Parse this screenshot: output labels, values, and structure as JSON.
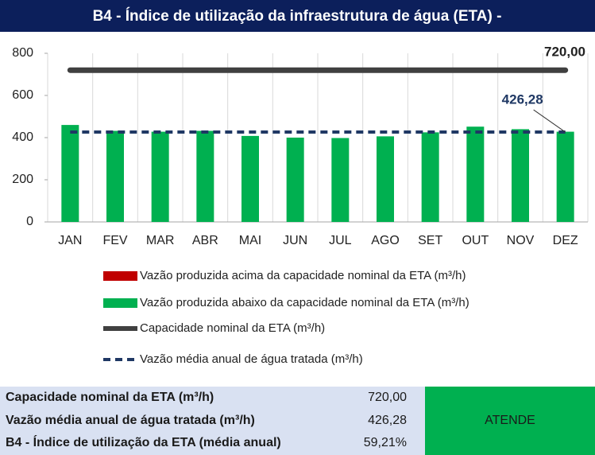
{
  "chart_data": {
    "type": "bar",
    "title": "B4 - Índice de utilização da infraestrutura de água (ETA) -",
    "categories": [
      "JAN",
      "FEV",
      "MAR",
      "ABR",
      "MAI",
      "JUN",
      "JUL",
      "AGO",
      "SET",
      "OUT",
      "NOV",
      "DEZ"
    ],
    "series": [
      {
        "name": "Vazão produzida acima da capacidade nominal da ETA (m³/h)",
        "color": "#c00000",
        "kind": "bar",
        "values": [
          0,
          0,
          0,
          0,
          0,
          0,
          0,
          0,
          0,
          0,
          0,
          0
        ]
      },
      {
        "name": "Vazão produzida abaixo da capacidade nominal da ETA (m³/h)",
        "color": "#00b050",
        "kind": "bar",
        "values": [
          460,
          432,
          428,
          432,
          408,
          400,
          398,
          406,
          425,
          452,
          440,
          428
        ]
      },
      {
        "name": "Capacidade nominal da ETA (m³/h)",
        "color": "#404040",
        "kind": "line",
        "values": [
          720,
          720,
          720,
          720,
          720,
          720,
          720,
          720,
          720,
          720,
          720,
          720
        ],
        "value_labels": [
          null,
          null,
          null,
          null,
          null,
          null,
          null,
          null,
          null,
          null,
          null,
          "720,00"
        ]
      },
      {
        "name": "Vazão média anual de água tratada (m³/h)",
        "color": "#1f3864",
        "kind": "dashed-line",
        "values": [
          426.28,
          426.28,
          426.28,
          426.28,
          426.28,
          426.28,
          426.28,
          426.28,
          426.28,
          426.28,
          426.28,
          426.28
        ],
        "value_labels": [
          null,
          null,
          null,
          null,
          null,
          null,
          null,
          null,
          null,
          null,
          null,
          "426,28"
        ]
      }
    ],
    "ylim": [
      0,
      800
    ],
    "yticks": [
      0,
      200,
      400,
      600,
      800
    ]
  },
  "summary": {
    "rows": [
      [
        "Capacidade nominal da ETA (m³/h)",
        "720,00"
      ],
      [
        "Vazão média anual de água tratada (m³/h)",
        "426,28"
      ],
      [
        "B4 - Índice de utilização da ETA (média anual)",
        "59,21%"
      ]
    ],
    "status": "ATENDE"
  }
}
